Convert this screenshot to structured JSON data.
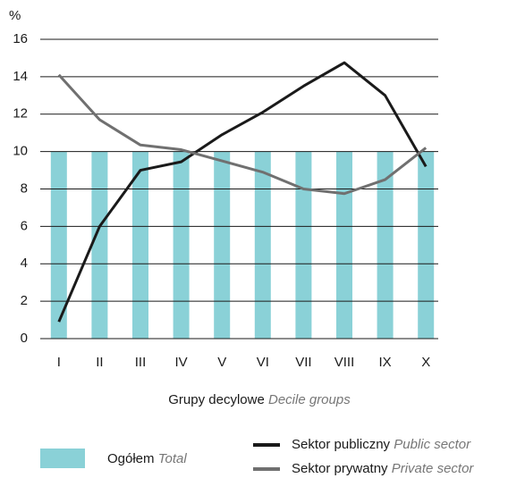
{
  "chart_data": {
    "type": "bar_line",
    "y_label": "%",
    "x_label": {
      "pl": "Grupy decylowe",
      "en": "Decile groups"
    },
    "categories": [
      "I",
      "II",
      "III",
      "IV",
      "V",
      "VI",
      "VII",
      "VIII",
      "IX",
      "X"
    ],
    "ylim": [
      0,
      16
    ],
    "yticks": [
      0,
      2,
      4,
      6,
      8,
      10,
      12,
      14,
      16
    ],
    "grid": true,
    "series": [
      {
        "name": "Ogółem",
        "name_en": "Total",
        "type": "bar",
        "color": "#8ad1d7",
        "values": [
          10,
          10,
          10,
          10,
          10,
          10,
          10,
          10,
          10,
          10
        ]
      },
      {
        "name": "Sektor publiczny",
        "name_en": "Public sector",
        "type": "line",
        "color": "#1a1a1a",
        "values": [
          0.9,
          6.0,
          9.0,
          9.45,
          10.9,
          12.1,
          13.5,
          14.75,
          13.0,
          9.2
        ]
      },
      {
        "name": "Sektor prywatny",
        "name_en": "Private sector",
        "type": "line",
        "color": "#707070",
        "values": [
          14.1,
          11.7,
          10.35,
          10.1,
          9.5,
          8.9,
          8.0,
          7.75,
          8.5,
          10.2
        ]
      }
    ]
  }
}
